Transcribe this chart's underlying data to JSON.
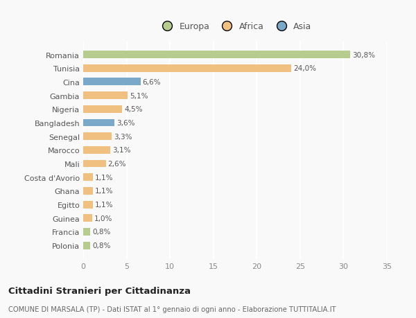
{
  "categories": [
    "Polonia",
    "Francia",
    "Guinea",
    "Egitto",
    "Ghana",
    "Costa d'Avorio",
    "Mali",
    "Marocco",
    "Senegal",
    "Bangladesh",
    "Nigeria",
    "Gambia",
    "Cina",
    "Tunisia",
    "Romania"
  ],
  "values": [
    0.8,
    0.8,
    1.0,
    1.1,
    1.1,
    1.1,
    2.6,
    3.1,
    3.3,
    3.6,
    4.5,
    5.1,
    6.6,
    24.0,
    30.8
  ],
  "labels": [
    "0,8%",
    "0,8%",
    "1,0%",
    "1,1%",
    "1,1%",
    "1,1%",
    "2,6%",
    "3,1%",
    "3,3%",
    "3,6%",
    "4,5%",
    "5,1%",
    "6,6%",
    "24,0%",
    "30,8%"
  ],
  "continents": [
    "Europa",
    "Europa",
    "Africa",
    "Africa",
    "Africa",
    "Africa",
    "Africa",
    "Africa",
    "Africa",
    "Asia",
    "Africa",
    "Africa",
    "Asia",
    "Africa",
    "Europa"
  ],
  "colors": {
    "Europa": "#b5cc8e",
    "Africa": "#f0c080",
    "Asia": "#7aa8c9"
  },
  "title": "Cittadini Stranieri per Cittadinanza",
  "subtitle": "COMUNE DI MARSALA (TP) - Dati ISTAT al 1° gennaio di ogni anno - Elaborazione TUTTITALIA.IT",
  "xlim": [
    0,
    35
  ],
  "xticks": [
    0,
    5,
    10,
    15,
    20,
    25,
    30,
    35
  ],
  "background_color": "#f9f9f9",
  "grid_color": "#ffffff",
  "bar_height": 0.55,
  "legend_order": [
    "Europa",
    "Africa",
    "Asia"
  ]
}
